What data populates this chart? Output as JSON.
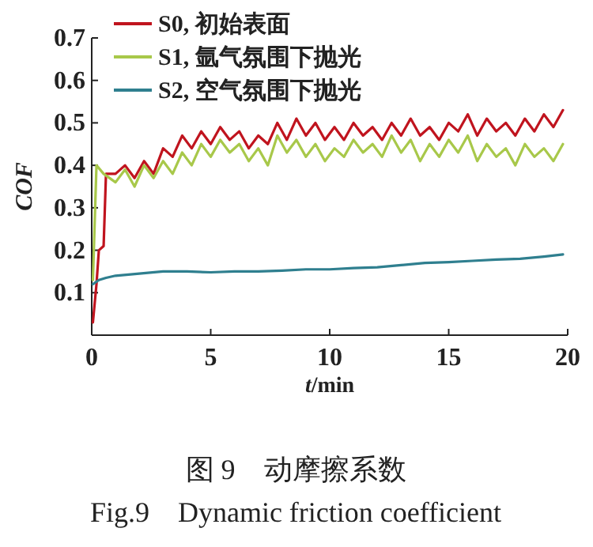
{
  "chart_data": {
    "type": "line",
    "title": "图 9　动摩擦系数",
    "subtitle": "Fig.9　Dynamic friction coefficient",
    "xlabel": "t/min",
    "ylabel": "COF",
    "xlim": [
      0,
      20
    ],
    "ylim": [
      0,
      0.7
    ],
    "xticks": [
      0,
      5,
      10,
      15,
      20
    ],
    "yticks": [
      0.1,
      0.2,
      0.3,
      0.4,
      0.5,
      0.6,
      0.7
    ],
    "legend": "top left",
    "grid": false,
    "series": [
      {
        "name": "S0, 初始表面",
        "color": "#c0141e",
        "x": [
          0.05,
          0.2,
          0.3,
          0.5,
          0.6,
          1.0,
          1.4,
          1.8,
          2.2,
          2.6,
          3.0,
          3.4,
          3.8,
          4.2,
          4.6,
          5.0,
          5.4,
          5.8,
          6.2,
          6.6,
          7.0,
          7.4,
          7.8,
          8.2,
          8.6,
          9.0,
          9.4,
          9.8,
          10.2,
          10.6,
          11.0,
          11.4,
          11.8,
          12.2,
          12.6,
          13.0,
          13.4,
          13.8,
          14.2,
          14.6,
          15.0,
          15.4,
          15.8,
          16.2,
          16.6,
          17.0,
          17.4,
          17.8,
          18.2,
          18.6,
          19.0,
          19.4,
          19.8
        ],
        "values": [
          0.03,
          0.12,
          0.2,
          0.21,
          0.38,
          0.38,
          0.4,
          0.37,
          0.41,
          0.38,
          0.44,
          0.42,
          0.47,
          0.44,
          0.48,
          0.45,
          0.49,
          0.46,
          0.48,
          0.44,
          0.47,
          0.45,
          0.5,
          0.46,
          0.51,
          0.47,
          0.5,
          0.46,
          0.49,
          0.46,
          0.5,
          0.47,
          0.49,
          0.46,
          0.5,
          0.47,
          0.51,
          0.47,
          0.49,
          0.46,
          0.5,
          0.48,
          0.52,
          0.47,
          0.51,
          0.48,
          0.5,
          0.47,
          0.51,
          0.48,
          0.52,
          0.49,
          0.53
        ]
      },
      {
        "name": "S1, 氩气氛围下抛光",
        "color": "#a8c84a",
        "x": [
          0.05,
          0.2,
          0.5,
          1.0,
          1.4,
          1.8,
          2.2,
          2.6,
          3.0,
          3.4,
          3.8,
          4.2,
          4.6,
          5.0,
          5.4,
          5.8,
          6.2,
          6.6,
          7.0,
          7.4,
          7.8,
          8.2,
          8.6,
          9.0,
          9.4,
          9.8,
          10.2,
          10.6,
          11.0,
          11.4,
          11.8,
          12.2,
          12.6,
          13.0,
          13.4,
          13.8,
          14.2,
          14.6,
          15.0,
          15.4,
          15.8,
          16.2,
          16.6,
          17.0,
          17.4,
          17.8,
          18.2,
          18.6,
          19.0,
          19.4,
          19.8
        ],
        "values": [
          0.13,
          0.4,
          0.38,
          0.36,
          0.39,
          0.35,
          0.4,
          0.37,
          0.41,
          0.38,
          0.43,
          0.4,
          0.45,
          0.42,
          0.46,
          0.43,
          0.45,
          0.41,
          0.44,
          0.4,
          0.47,
          0.43,
          0.46,
          0.42,
          0.45,
          0.41,
          0.44,
          0.42,
          0.46,
          0.43,
          0.45,
          0.42,
          0.47,
          0.43,
          0.46,
          0.41,
          0.45,
          0.42,
          0.46,
          0.43,
          0.47,
          0.41,
          0.45,
          0.42,
          0.44,
          0.4,
          0.45,
          0.42,
          0.44,
          0.41,
          0.45
        ]
      },
      {
        "name": "S2, 空气氛围下抛光",
        "color": "#2f7f8f",
        "x": [
          0.05,
          0.3,
          0.6,
          1,
          2,
          3,
          4,
          5,
          6,
          7,
          8,
          9,
          10,
          11,
          12,
          13,
          14,
          15,
          16,
          17,
          18,
          19,
          19.8
        ],
        "values": [
          0.12,
          0.13,
          0.135,
          0.14,
          0.145,
          0.15,
          0.15,
          0.148,
          0.15,
          0.15,
          0.152,
          0.155,
          0.155,
          0.158,
          0.16,
          0.165,
          0.17,
          0.172,
          0.175,
          0.178,
          0.18,
          0.185,
          0.19
        ]
      }
    ]
  }
}
